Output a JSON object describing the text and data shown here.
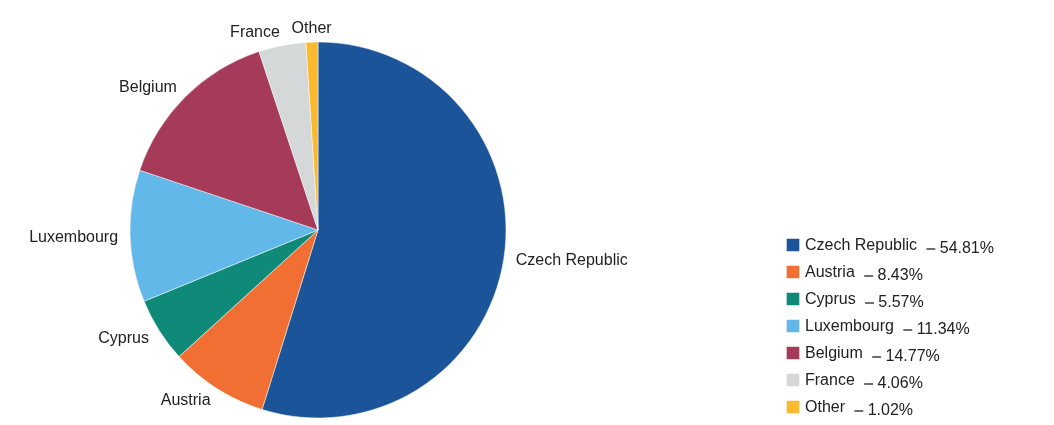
{
  "chart_data": {
    "type": "pie",
    "categories": [
      "Czech Republic",
      "Austria",
      "Cyprus",
      "Luxembourg",
      "Belgium",
      "France",
      "Other"
    ],
    "values": [
      54.81,
      8.43,
      5.57,
      11.34,
      14.77,
      4.06,
      1.02
    ],
    "value_labels": [
      "54.81%",
      "8.43%",
      "5.57%",
      "11.34%",
      "14.77%",
      "4.06%",
      "1.02%"
    ],
    "colors": [
      "#1c5499",
      "#f26f33",
      "#108a78",
      "#62b8e8",
      "#a53a59",
      "#d4d8d9",
      "#fbb92e"
    ],
    "legend": "bottom right"
  }
}
